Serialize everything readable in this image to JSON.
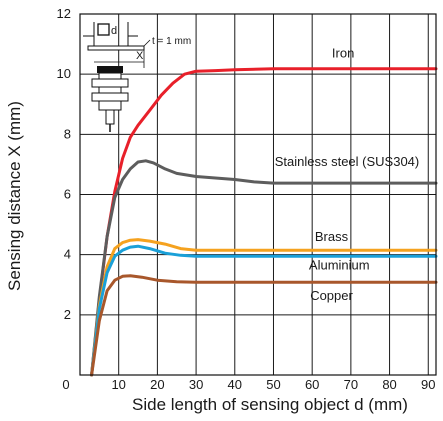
{
  "chart_data": {
    "type": "line",
    "title": "",
    "xlabel": "Side length of sensing object d (mm)",
    "ylabel": "Sensing distance X (mm)",
    "xlim": [
      0,
      92
    ],
    "ylim": [
      0,
      12
    ],
    "x_ticks": [
      0,
      10,
      20,
      30,
      40,
      50,
      60,
      70,
      80,
      90
    ],
    "y_ticks": [
      2,
      4,
      6,
      8,
      10,
      12
    ],
    "grid": true,
    "legend": "inline labels",
    "inset_label": "t = 1 mm",
    "inset_letters": {
      "d": "d",
      "x": "X"
    },
    "series": [
      {
        "name": "Iron",
        "color": "#e8202a",
        "points": [
          [
            3,
            0
          ],
          [
            5,
            2.5
          ],
          [
            7,
            4.6
          ],
          [
            9,
            6.1
          ],
          [
            11,
            7.2
          ],
          [
            13,
            7.9
          ],
          [
            15,
            8.3
          ],
          [
            18,
            8.8
          ],
          [
            21,
            9.3
          ],
          [
            24,
            9.7
          ],
          [
            27,
            10
          ],
          [
            30,
            10.1
          ],
          [
            35,
            10.12
          ],
          [
            40,
            10.15
          ],
          [
            50,
            10.18
          ],
          [
            60,
            10.18
          ],
          [
            70,
            10.18
          ],
          [
            80,
            10.18
          ],
          [
            92,
            10.18
          ]
        ]
      },
      {
        "name": "Stainless steel (SUS304)",
        "color": "#5d5d5d",
        "points": [
          [
            3,
            0
          ],
          [
            5,
            2.6
          ],
          [
            7,
            4.6
          ],
          [
            9,
            5.9
          ],
          [
            11,
            6.5
          ],
          [
            13,
            6.85
          ],
          [
            15,
            7.08
          ],
          [
            17,
            7.12
          ],
          [
            19,
            7.05
          ],
          [
            22,
            6.85
          ],
          [
            25,
            6.7
          ],
          [
            30,
            6.6
          ],
          [
            35,
            6.55
          ],
          [
            40,
            6.5
          ],
          [
            45,
            6.42
          ],
          [
            50,
            6.38
          ],
          [
            60,
            6.38
          ],
          [
            70,
            6.38
          ],
          [
            80,
            6.38
          ],
          [
            92,
            6.38
          ]
        ]
      },
      {
        "name": "Brass",
        "color": "#f5a21f",
        "points": [
          [
            3,
            0
          ],
          [
            5,
            2.3
          ],
          [
            7,
            3.6
          ],
          [
            9,
            4.2
          ],
          [
            11,
            4.4
          ],
          [
            13,
            4.48
          ],
          [
            15,
            4.5
          ],
          [
            18,
            4.45
          ],
          [
            22,
            4.35
          ],
          [
            26,
            4.2
          ],
          [
            30,
            4.15
          ],
          [
            40,
            4.15
          ],
          [
            50,
            4.15
          ],
          [
            60,
            4.15
          ],
          [
            70,
            4.15
          ],
          [
            80,
            4.15
          ],
          [
            92,
            4.15
          ]
        ]
      },
      {
        "name": "Aluminium",
        "color": "#1aa0d8",
        "points": [
          [
            3,
            0
          ],
          [
            5,
            2.2
          ],
          [
            7,
            3.4
          ],
          [
            9,
            3.95
          ],
          [
            11,
            4.15
          ],
          [
            13,
            4.25
          ],
          [
            15,
            4.28
          ],
          [
            18,
            4.2
          ],
          [
            22,
            4.05
          ],
          [
            26,
            3.98
          ],
          [
            30,
            3.95
          ],
          [
            40,
            3.95
          ],
          [
            50,
            3.95
          ],
          [
            60,
            3.95
          ],
          [
            70,
            3.95
          ],
          [
            80,
            3.95
          ],
          [
            92,
            3.95
          ]
        ]
      },
      {
        "name": "Copper",
        "color": "#a8572b",
        "points": [
          [
            3,
            0
          ],
          [
            5,
            1.8
          ],
          [
            7,
            2.8
          ],
          [
            9,
            3.15
          ],
          [
            11,
            3.28
          ],
          [
            13,
            3.3
          ],
          [
            16,
            3.25
          ],
          [
            20,
            3.15
          ],
          [
            25,
            3.1
          ],
          [
            30,
            3.08
          ],
          [
            40,
            3.08
          ],
          [
            50,
            3.08
          ],
          [
            60,
            3.08
          ],
          [
            70,
            3.08
          ],
          [
            80,
            3.08
          ],
          [
            92,
            3.08
          ]
        ]
      }
    ],
    "annotations": [
      {
        "text": "Iron",
        "series": "Iron"
      },
      {
        "text": "Stainless steel (SUS304)",
        "series": "Stainless steel (SUS304)"
      },
      {
        "text": "Brass",
        "series": "Brass"
      },
      {
        "text": "Aluminium",
        "series": "Aluminium"
      },
      {
        "text": "Copper",
        "series": "Copper"
      }
    ]
  }
}
